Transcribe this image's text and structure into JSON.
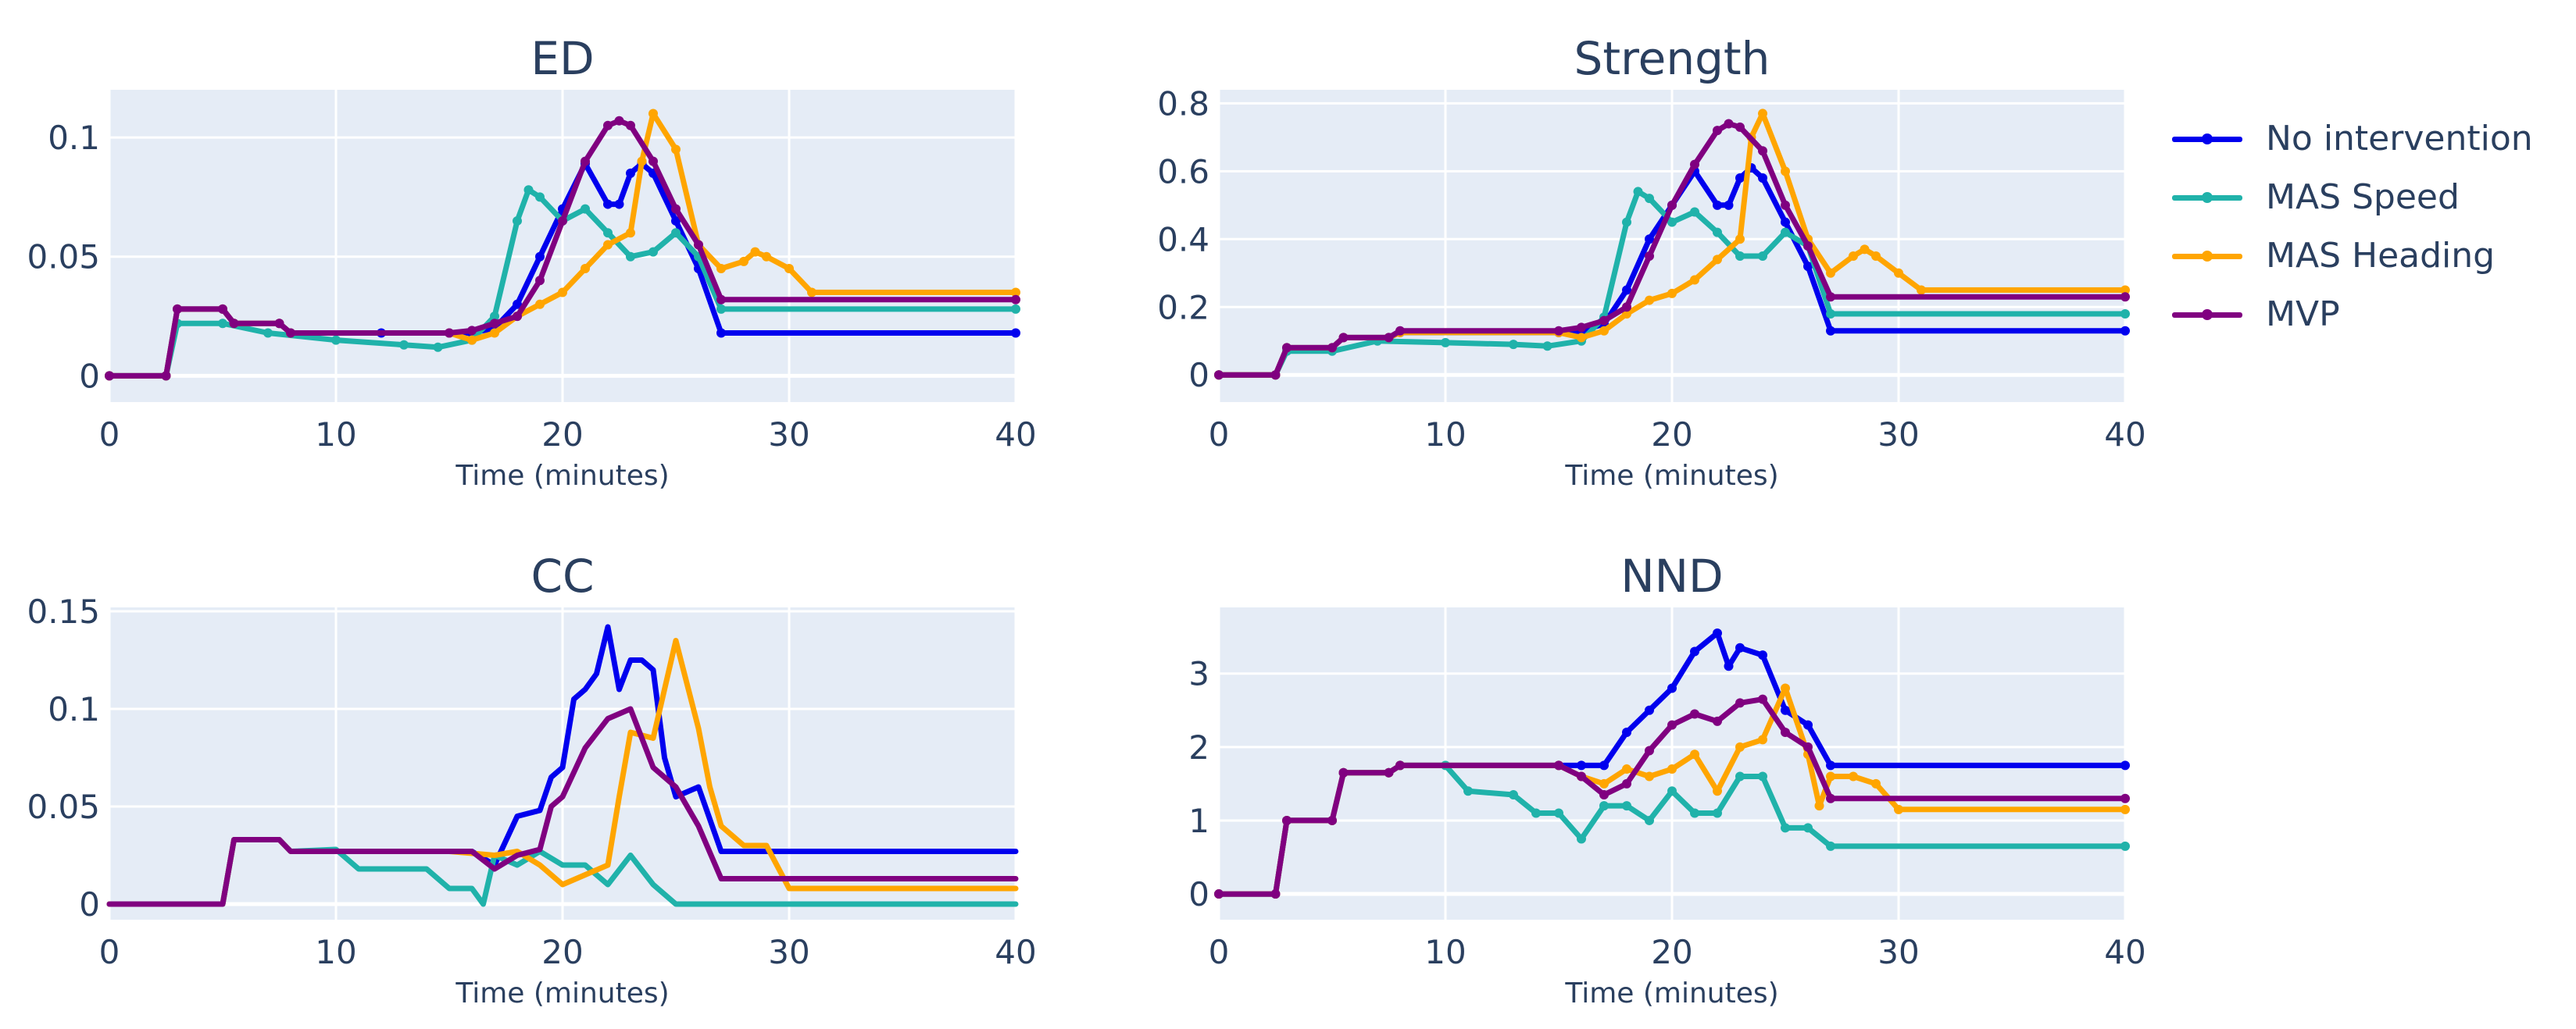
{
  "chart_data": [
    {
      "type": "line",
      "title": "ED",
      "xlabel": "Time (minutes)",
      "ylabel": "",
      "xlim": [
        0,
        40
      ],
      "ylim": [
        -0.011,
        0.12
      ],
      "xticks": [
        0,
        10,
        20,
        30,
        40
      ],
      "yticks": [
        0,
        0.05,
        0.1
      ],
      "yticklabels": [
        "0",
        "0.05",
        "0.1"
      ],
      "markers": true,
      "series": [
        {
          "name": "No intervention",
          "x": [
            0,
            2.5,
            3,
            5,
            5.5,
            7.5,
            8,
            12,
            15,
            16,
            17,
            18,
            19,
            20,
            21,
            22,
            22.5,
            23,
            23.5,
            24,
            25,
            26,
            27,
            40
          ],
          "y": [
            0,
            0,
            0.028,
            0.028,
            0.022,
            0.022,
            0.018,
            0.018,
            0.018,
            0.018,
            0.02,
            0.03,
            0.05,
            0.07,
            0.089,
            0.072,
            0.072,
            0.085,
            0.089,
            0.085,
            0.065,
            0.045,
            0.018,
            0.018
          ]
        },
        {
          "name": "MAS Speed",
          "x": [
            0,
            2.5,
            3,
            5,
            7,
            10,
            13,
            14.5,
            16,
            17,
            18,
            18.5,
            19,
            20,
            21,
            22,
            23,
            24,
            25,
            26,
            27,
            40
          ],
          "y": [
            0,
            0,
            0.022,
            0.022,
            0.018,
            0.015,
            0.013,
            0.012,
            0.015,
            0.025,
            0.065,
            0.078,
            0.075,
            0.065,
            0.07,
            0.06,
            0.05,
            0.052,
            0.06,
            0.05,
            0.028,
            0.028
          ]
        },
        {
          "name": "MAS Heading",
          "x": [
            0,
            2.5,
            3,
            5,
            5.5,
            7.5,
            8,
            15,
            16,
            17,
            18,
            19,
            20,
            21,
            22,
            23,
            23.5,
            24,
            25,
            26,
            27,
            28,
            28.5,
            29,
            30,
            31,
            40
          ],
          "y": [
            0,
            0,
            0.028,
            0.028,
            0.022,
            0.022,
            0.018,
            0.018,
            0.015,
            0.018,
            0.025,
            0.03,
            0.035,
            0.045,
            0.055,
            0.06,
            0.09,
            0.11,
            0.095,
            0.055,
            0.045,
            0.048,
            0.052,
            0.05,
            0.045,
            0.035,
            0.035
          ]
        },
        {
          "name": "MVP",
          "x": [
            0,
            2.5,
            3,
            5,
            5.5,
            7.5,
            8,
            15,
            16,
            17,
            18,
            19,
            20,
            21,
            22,
            22.5,
            23,
            24,
            25,
            26,
            27,
            40
          ],
          "y": [
            0,
            0,
            0.028,
            0.028,
            0.022,
            0.022,
            0.018,
            0.018,
            0.019,
            0.022,
            0.025,
            0.04,
            0.065,
            0.09,
            0.105,
            0.107,
            0.105,
            0.09,
            0.07,
            0.055,
            0.032,
            0.032
          ]
        }
      ]
    },
    {
      "type": "line",
      "title": "Strength",
      "xlabel": "Time (minutes)",
      "ylabel": "",
      "xlim": [
        0,
        40
      ],
      "ylim": [
        -0.08,
        0.84
      ],
      "xticks": [
        0,
        10,
        20,
        30,
        40
      ],
      "yticks": [
        0,
        0.2,
        0.4,
        0.6,
        0.8
      ],
      "yticklabels": [
        "0",
        "0.2",
        "0.4",
        "0.6",
        "0.8"
      ],
      "markers": true,
      "series": [
        {
          "name": "No intervention",
          "x": [
            0,
            2.5,
            3,
            5,
            5.5,
            7.5,
            8,
            15,
            16,
            17,
            18,
            19,
            20,
            21,
            22,
            22.5,
            23,
            23.5,
            24,
            25,
            26,
            27,
            40
          ],
          "y": [
            0,
            0,
            0.08,
            0.08,
            0.11,
            0.11,
            0.125,
            0.125,
            0.13,
            0.15,
            0.25,
            0.4,
            0.5,
            0.6,
            0.5,
            0.5,
            0.58,
            0.61,
            0.58,
            0.45,
            0.32,
            0.13,
            0.13
          ]
        },
        {
          "name": "MAS Speed",
          "x": [
            0,
            2.5,
            3,
            5,
            7,
            10,
            13,
            14.5,
            16,
            17,
            18,
            18.5,
            19,
            20,
            21,
            22,
            23,
            24,
            25,
            26,
            27,
            40
          ],
          "y": [
            0,
            0,
            0.07,
            0.07,
            0.1,
            0.095,
            0.09,
            0.085,
            0.1,
            0.17,
            0.45,
            0.54,
            0.52,
            0.45,
            0.48,
            0.42,
            0.35,
            0.35,
            0.42,
            0.38,
            0.18,
            0.18
          ]
        },
        {
          "name": "MAS Heading",
          "x": [
            0,
            2.5,
            3,
            5,
            5.5,
            7.5,
            8,
            15,
            16,
            17,
            18,
            19,
            20,
            21,
            22,
            23,
            23.5,
            24,
            25,
            26,
            27,
            28,
            28.5,
            29,
            30,
            31,
            40
          ],
          "y": [
            0,
            0,
            0.08,
            0.08,
            0.11,
            0.11,
            0.125,
            0.125,
            0.11,
            0.13,
            0.18,
            0.22,
            0.24,
            0.28,
            0.34,
            0.4,
            0.7,
            0.77,
            0.6,
            0.4,
            0.3,
            0.35,
            0.37,
            0.35,
            0.3,
            0.25,
            0.25
          ]
        },
        {
          "name": "MVP",
          "x": [
            0,
            2.5,
            3,
            5,
            5.5,
            7.5,
            8,
            15,
            16,
            17,
            18,
            19,
            20,
            21,
            22,
            22.5,
            23,
            24,
            25,
            26,
            27,
            40
          ],
          "y": [
            0,
            0,
            0.08,
            0.08,
            0.11,
            0.11,
            0.13,
            0.13,
            0.14,
            0.16,
            0.2,
            0.35,
            0.5,
            0.62,
            0.72,
            0.74,
            0.73,
            0.66,
            0.5,
            0.38,
            0.23,
            0.23
          ]
        }
      ]
    },
    {
      "type": "line",
      "title": "CC",
      "xlabel": "Time (minutes)",
      "ylabel": "",
      "xlim": [
        0,
        40
      ],
      "ylim": [
        -0.008,
        0.152
      ],
      "xticks": [
        0,
        10,
        20,
        30,
        40
      ],
      "yticks": [
        0,
        0.05,
        0.1,
        0.15
      ],
      "yticklabels": [
        "0",
        "0.05",
        "0.1",
        "0.15"
      ],
      "markers": false,
      "series": [
        {
          "name": "No intervention",
          "x": [
            0,
            5,
            5.5,
            7.5,
            8,
            15,
            16,
            17,
            18,
            19,
            19.5,
            20,
            20.5,
            21,
            21.5,
            22,
            22.5,
            23,
            23.5,
            24,
            24.5,
            25,
            26,
            27,
            40
          ],
          "y": [
            0,
            0,
            0.033,
            0.033,
            0.027,
            0.027,
            0.027,
            0.02,
            0.045,
            0.048,
            0.065,
            0.07,
            0.105,
            0.11,
            0.118,
            0.142,
            0.11,
            0.125,
            0.125,
            0.12,
            0.075,
            0.055,
            0.06,
            0.027,
            0.027
          ]
        },
        {
          "name": "MAS Speed",
          "x": [
            0,
            5,
            5.5,
            7.5,
            8,
            10,
            11,
            14,
            15,
            16,
            16.5,
            17,
            18,
            19,
            20,
            21,
            22,
            23,
            24,
            25,
            26,
            40
          ],
          "y": [
            0,
            0,
            0.033,
            0.033,
            0.027,
            0.028,
            0.018,
            0.018,
            0.008,
            0.008,
            0,
            0.025,
            0.02,
            0.027,
            0.02,
            0.02,
            0.01,
            0.025,
            0.01,
            0,
            0,
            0
          ]
        },
        {
          "name": "MAS Heading",
          "x": [
            0,
            5,
            5.5,
            7.5,
            8,
            15,
            17,
            18,
            19,
            20,
            21,
            22,
            22.5,
            23,
            24,
            25,
            26,
            26.5,
            27,
            28,
            29,
            30,
            40
          ],
          "y": [
            0,
            0,
            0.033,
            0.033,
            0.027,
            0.027,
            0.025,
            0.027,
            0.02,
            0.01,
            0.015,
            0.02,
            0.055,
            0.088,
            0.085,
            0.135,
            0.09,
            0.06,
            0.04,
            0.03,
            0.03,
            0.008,
            0.008
          ]
        },
        {
          "name": "MVP",
          "x": [
            0,
            5,
            5.5,
            7.5,
            8,
            15,
            16,
            17,
            18,
            19,
            19.5,
            20,
            21,
            22,
            23,
            24,
            25,
            26,
            27,
            40
          ],
          "y": [
            0,
            0,
            0.033,
            0.033,
            0.027,
            0.027,
            0.027,
            0.018,
            0.025,
            0.028,
            0.05,
            0.055,
            0.08,
            0.095,
            0.1,
            0.07,
            0.06,
            0.04,
            0.013,
            0.013
          ]
        }
      ]
    },
    {
      "type": "line",
      "title": "NND",
      "xlabel": "Time (minutes)",
      "ylabel": "",
      "xlim": [
        0,
        40
      ],
      "ylim": [
        -0.35,
        3.9
      ],
      "xticks": [
        0,
        10,
        20,
        30,
        40
      ],
      "yticks": [
        0,
        1,
        2,
        3
      ],
      "yticklabels": [
        "0",
        "1",
        "2",
        "3"
      ],
      "markers": true,
      "series": [
        {
          "name": "No intervention",
          "x": [
            0,
            2.5,
            3,
            5,
            5.5,
            7.5,
            8,
            15,
            16,
            17,
            18,
            19,
            20,
            21,
            22,
            22.5,
            23,
            24,
            25,
            26,
            27,
            40
          ],
          "y": [
            0,
            0,
            1,
            1,
            1.65,
            1.65,
            1.75,
            1.75,
            1.75,
            1.75,
            2.2,
            2.5,
            2.8,
            3.3,
            3.55,
            3.1,
            3.35,
            3.25,
            2.5,
            2.3,
            1.75,
            1.75
          ]
        },
        {
          "name": "MAS Speed",
          "x": [
            0,
            2.5,
            3,
            5,
            5.5,
            7.5,
            8,
            10,
            11,
            13,
            14,
            15,
            16,
            17,
            18,
            19,
            20,
            21,
            22,
            23,
            24,
            25,
            26,
            27,
            40
          ],
          "y": [
            0,
            0,
            1,
            1,
            1.65,
            1.65,
            1.75,
            1.75,
            1.4,
            1.35,
            1.1,
            1.1,
            0.75,
            1.2,
            1.2,
            1,
            1.4,
            1.1,
            1.1,
            1.6,
            1.6,
            0.9,
            0.9,
            0.65,
            0.65
          ]
        },
        {
          "name": "MAS Heading",
          "x": [
            0,
            2.5,
            3,
            5,
            5.5,
            7.5,
            8,
            15,
            16,
            17,
            18,
            19,
            20,
            21,
            22,
            23,
            24,
            25,
            26,
            26.5,
            27,
            28,
            29,
            30,
            40
          ],
          "y": [
            0,
            0,
            1,
            1,
            1.65,
            1.65,
            1.75,
            1.75,
            1.6,
            1.5,
            1.7,
            1.6,
            1.7,
            1.9,
            1.4,
            2,
            2.1,
            2.8,
            1.9,
            1.2,
            1.6,
            1.6,
            1.5,
            1.15,
            1.15
          ]
        },
        {
          "name": "MVP",
          "x": [
            0,
            2.5,
            3,
            5,
            5.5,
            7.5,
            8,
            15,
            16,
            17,
            18,
            19,
            20,
            21,
            22,
            23,
            24,
            25,
            26,
            27,
            40
          ],
          "y": [
            0,
            0,
            1,
            1,
            1.65,
            1.65,
            1.75,
            1.75,
            1.6,
            1.35,
            1.5,
            1.95,
            2.3,
            2.45,
            2.35,
            2.6,
            2.65,
            2.2,
            2,
            1.3,
            1.3
          ]
        }
      ]
    }
  ],
  "legend": {
    "placement": "right",
    "items": [
      {
        "name": "No intervention",
        "color": "#0000ee"
      },
      {
        "name": "MAS Speed",
        "color": "#20b2aa"
      },
      {
        "name": "MAS Heading",
        "color": "#ffa500"
      },
      {
        "name": "MVP",
        "color": "#800080"
      }
    ]
  },
  "colors": {
    "No intervention": "#0000ee",
    "MAS Speed": "#20b2aa",
    "MAS Heading": "#ffa500",
    "MVP": "#800080",
    "plot_bg": "#e5ecf6",
    "grid": "#ffffff",
    "text": "#2a3f5f"
  }
}
